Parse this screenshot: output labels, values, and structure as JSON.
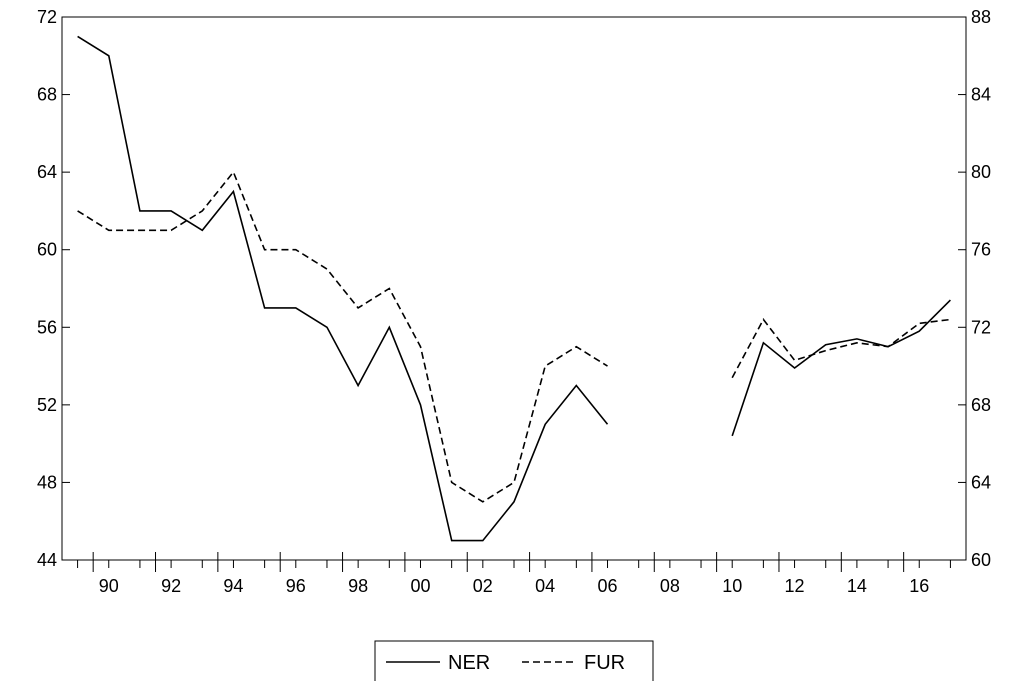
{
  "chart_data": {
    "type": "line",
    "title": "",
    "xlabel": "",
    "ylabel": "",
    "x": [
      1989,
      1990,
      1991,
      1992,
      1993,
      1994,
      1995,
      1996,
      1997,
      1998,
      1999,
      2000,
      2001,
      2002,
      2003,
      2004,
      2005,
      2006,
      2007,
      2008,
      2009,
      2010,
      2011,
      2012,
      2013,
      2014,
      2015,
      2016,
      2017
    ],
    "x_tick_values": [
      1990,
      1992,
      1994,
      1996,
      1998,
      2000,
      2002,
      2004,
      2006,
      2008,
      2010,
      2012,
      2014,
      2016
    ],
    "x_tick_labels": [
      "90",
      "92",
      "94",
      "96",
      "98",
      "00",
      "02",
      "04",
      "06",
      "08",
      "10",
      "12",
      "14",
      "16"
    ],
    "xlim": [
      1988.5,
      2017.5
    ],
    "y_left": {
      "lim": [
        44,
        72
      ],
      "ticks": [
        44,
        48,
        52,
        56,
        60,
        64,
        68,
        72
      ]
    },
    "y_right": {
      "lim": [
        60,
        88
      ],
      "ticks": [
        60,
        64,
        68,
        72,
        76,
        80,
        84,
        88
      ]
    },
    "series": [
      {
        "name": "NER",
        "axis": "left",
        "style": "solid",
        "values": [
          71.0,
          70.0,
          62.0,
          62.0,
          61.0,
          63.0,
          57.0,
          57.0,
          56.0,
          53.0,
          56.0,
          52.0,
          45.0,
          45.0,
          47.0,
          51.0,
          53.0,
          51.0,
          null,
          null,
          null,
          50.4,
          55.2,
          53.9,
          55.1,
          55.4,
          55.0,
          55.8,
          57.4
        ]
      },
      {
        "name": "FUR",
        "axis": "right",
        "style": "dashed",
        "values": [
          78.0,
          77.0,
          77.0,
          77.0,
          78.0,
          80.0,
          76.0,
          76.0,
          75.0,
          73.0,
          74.0,
          71.0,
          64.0,
          63.0,
          64.0,
          70.0,
          71.0,
          70.0,
          null,
          null,
          null,
          69.4,
          72.4,
          70.3,
          70.8,
          71.2,
          71.0,
          72.2,
          72.4
        ]
      }
    ],
    "grid": false,
    "legend_position": "bottom-center"
  }
}
